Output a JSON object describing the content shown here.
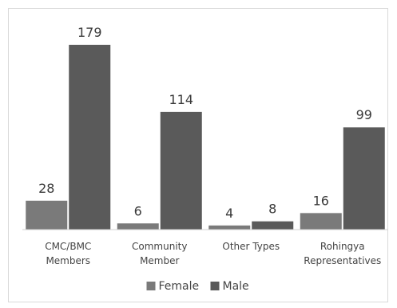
{
  "chart_data": {
    "type": "bar",
    "categories": [
      [
        "CMC/BMC",
        "Members"
      ],
      [
        "Community",
        "Member"
      ],
      [
        "Other Types"
      ],
      [
        "Rohingya",
        "Representatives"
      ]
    ],
    "series": [
      {
        "name": "Female",
        "values": [
          28,
          6,
          4,
          16
        ],
        "color": "#7a7a7a"
      },
      {
        "name": "Male",
        "values": [
          179,
          114,
          8,
          99
        ],
        "color": "#5a5a5a"
      }
    ],
    "ylim": [
      0,
      179
    ],
    "grid": false,
    "legend": "bottom"
  }
}
